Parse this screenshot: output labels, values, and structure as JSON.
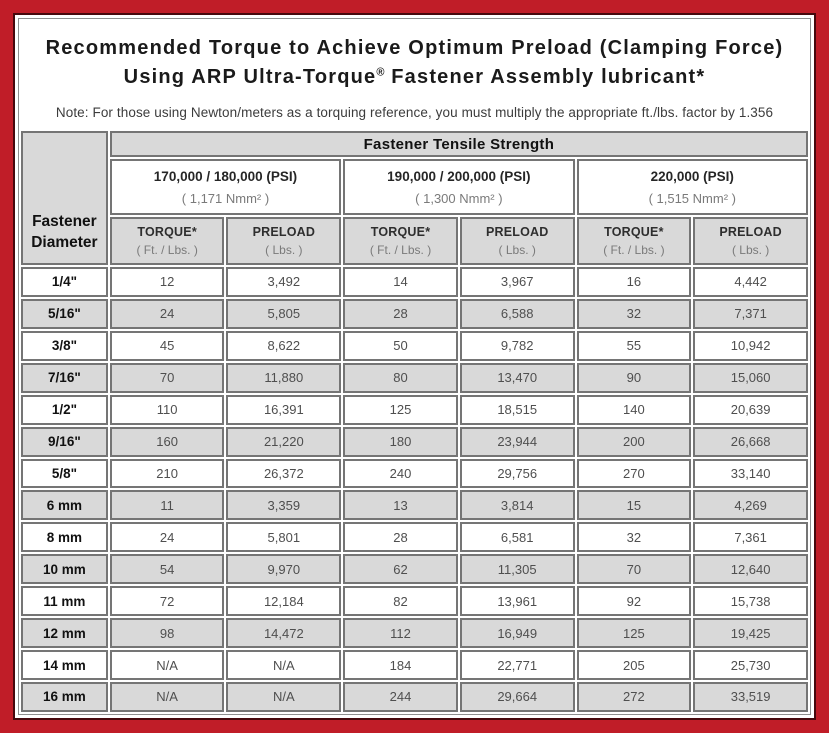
{
  "title": {
    "line1": "Recommended Torque to Achieve Optimum Preload (Clamping Force)",
    "line2_pre": "Using ARP Ultra-Torque",
    "line2_reg": "®",
    "line2_post": " Fastener Assembly lubricant*"
  },
  "note": "Note: For those using Newton/meters as a torquing reference, you must multiply the appropriate ft./lbs. factor by 1.356",
  "table": {
    "corner_header": "Fastener Diameter",
    "main_header": "Fastener Tensile Strength",
    "strength_groups": [
      {
        "psi": "170,000 / 180,000 (PSI)",
        "nmm": "( 1,171 Nmm² )"
      },
      {
        "psi": "190,000 / 200,000 (PSI)",
        "nmm": "( 1,300 Nmm² )"
      },
      {
        "psi": "220,000 (PSI)",
        "nmm": "( 1,515 Nmm² )"
      }
    ],
    "sub_headers": {
      "torque_label": "TORQUE*",
      "torque_unit": "( Ft. / Lbs. )",
      "preload_label": "PRELOAD",
      "preload_unit": "( Lbs. )"
    },
    "rows": [
      {
        "diameter": "1/4\"",
        "values": [
          "12",
          "3,492",
          "14",
          "3,967",
          "16",
          "4,442"
        ]
      },
      {
        "diameter": "5/16\"",
        "values": [
          "24",
          "5,805",
          "28",
          "6,588",
          "32",
          "7,371"
        ]
      },
      {
        "diameter": "3/8\"",
        "values": [
          "45",
          "8,622",
          "50",
          "9,782",
          "55",
          "10,942"
        ]
      },
      {
        "diameter": "7/16\"",
        "values": [
          "70",
          "11,880",
          "80",
          "13,470",
          "90",
          "15,060"
        ]
      },
      {
        "diameter": "1/2\"",
        "values": [
          "110",
          "16,391",
          "125",
          "18,515",
          "140",
          "20,639"
        ]
      },
      {
        "diameter": "9/16\"",
        "values": [
          "160",
          "21,220",
          "180",
          "23,944",
          "200",
          "26,668"
        ]
      },
      {
        "diameter": "5/8\"",
        "values": [
          "210",
          "26,372",
          "240",
          "29,756",
          "270",
          "33,140"
        ]
      },
      {
        "diameter": "6 mm",
        "values": [
          "11",
          "3,359",
          "13",
          "3,814",
          "15",
          "4,269"
        ]
      },
      {
        "diameter": "8 mm",
        "values": [
          "24",
          "5,801",
          "28",
          "6,581",
          "32",
          "7,361"
        ]
      },
      {
        "diameter": "10 mm",
        "values": [
          "54",
          "9,970",
          "62",
          "11,305",
          "70",
          "12,640"
        ]
      },
      {
        "diameter": "11 mm",
        "values": [
          "72",
          "12,184",
          "82",
          "13,961",
          "92",
          "15,738"
        ]
      },
      {
        "diameter": "12 mm",
        "values": [
          "98",
          "14,472",
          "112",
          "16,949",
          "125",
          "19,425"
        ]
      },
      {
        "diameter": "14 mm",
        "values": [
          "N/A",
          "N/A",
          "184",
          "22,771",
          "205",
          "25,730"
        ]
      },
      {
        "diameter": "16 mm",
        "values": [
          "N/A",
          "N/A",
          "244",
          "29,664",
          "272",
          "33,519"
        ]
      }
    ]
  },
  "colors": {
    "frame_red": "#c01d28",
    "frame_dark_line": "#46080d",
    "panel_border": "#8f8f8f",
    "cell_border": "#757575",
    "header_bg": "#d9d9d9",
    "row_alt_bg": "#d9d9d9",
    "row_bg": "#ffffff",
    "text_dark": "#1a1a1a",
    "text_value": "#4f4f4f",
    "text_unit": "#7a7a7a"
  }
}
